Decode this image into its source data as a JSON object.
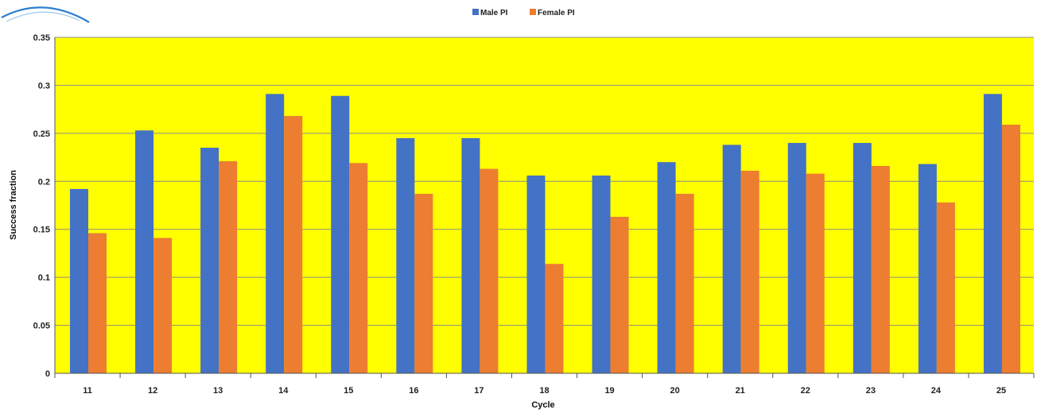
{
  "chart_data": {
    "type": "bar",
    "title": "",
    "xlabel": "Cycle",
    "ylabel": "Success fraction",
    "categories": [
      "11",
      "12",
      "13",
      "14",
      "15",
      "16",
      "17",
      "18",
      "19",
      "20",
      "21",
      "22",
      "23",
      "24",
      "25"
    ],
    "series": [
      {
        "name": "Male PI",
        "color": "#4472C4",
        "values": [
          0.192,
          0.253,
          0.235,
          0.291,
          0.289,
          0.245,
          0.245,
          0.206,
          0.206,
          0.22,
          0.238,
          0.24,
          0.24,
          0.218,
          0.291
        ]
      },
      {
        "name": "Female PI",
        "color": "#ED7D31",
        "values": [
          0.146,
          0.141,
          0.221,
          0.268,
          0.219,
          0.187,
          0.213,
          0.114,
          0.163,
          0.187,
          0.211,
          0.208,
          0.216,
          0.178,
          0.259
        ]
      }
    ],
    "ylim": [
      0,
      0.35
    ],
    "yticks": [
      "0",
      "0.05",
      "0.1",
      "0.15",
      "0.2",
      "0.25",
      "0.3",
      "0.35"
    ],
    "grid": true,
    "legend_position": "top-center",
    "plot_background": "#FFFF00",
    "gridline_color": "#8C8C8C"
  }
}
